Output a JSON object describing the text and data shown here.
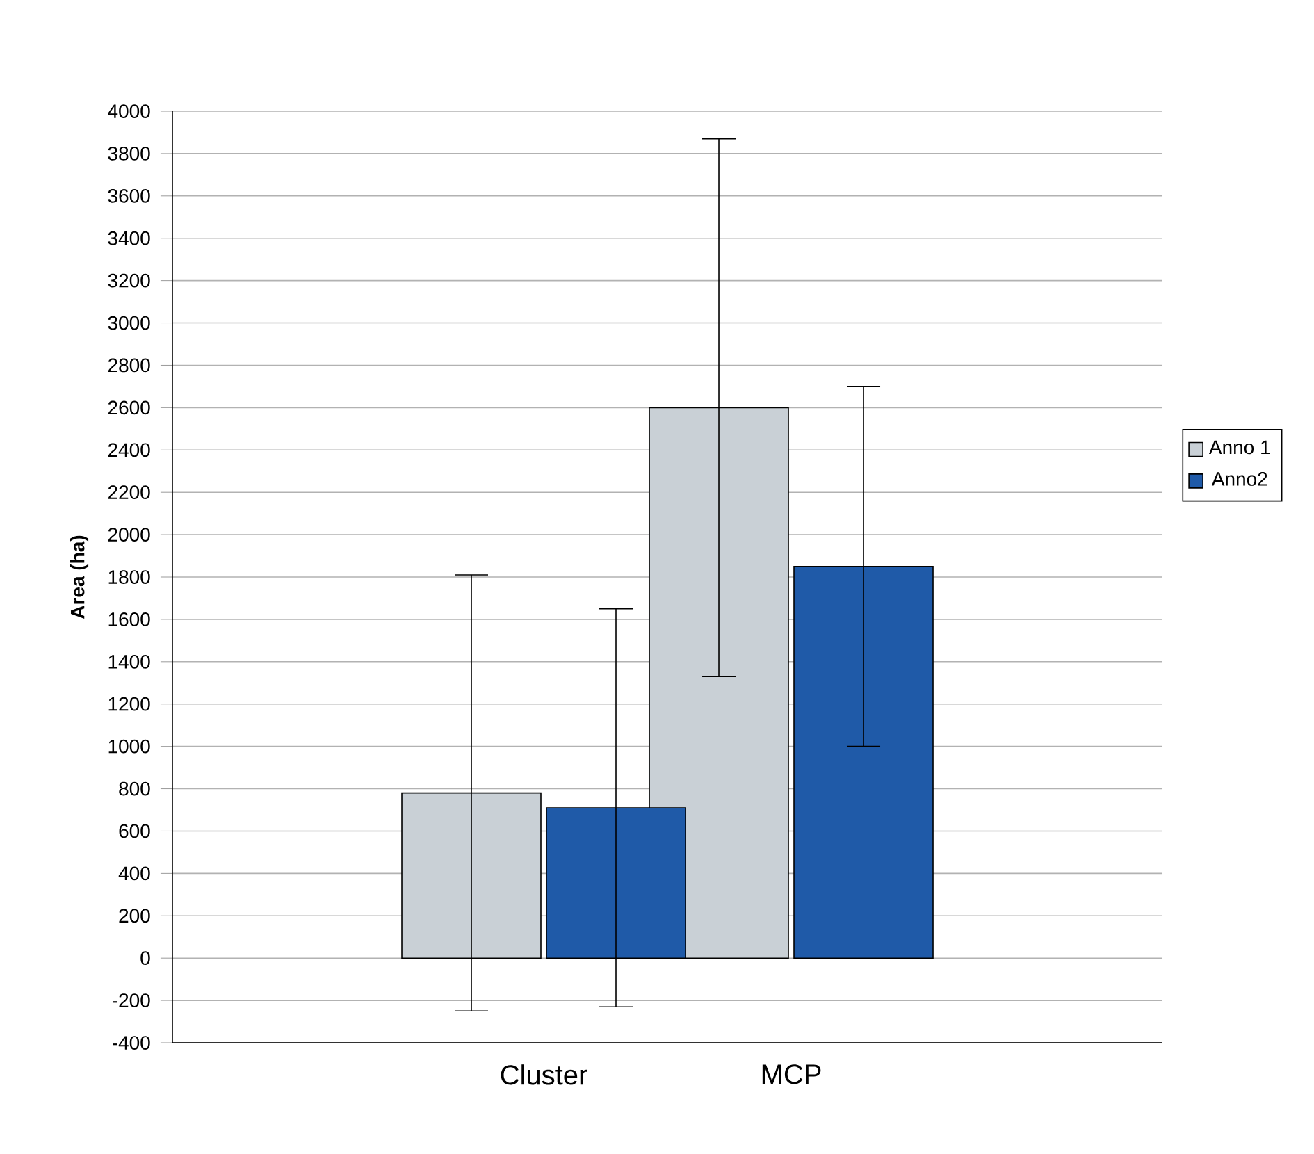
{
  "chart_data": {
    "type": "bar",
    "ylabel": "Area (ha)",
    "categories": [
      "Cluster",
      "MCP"
    ],
    "series": [
      {
        "name": "Anno 1",
        "color": "#c9d0d6",
        "values": [
          780,
          2600
        ],
        "errors": [
          1030,
          1270
        ]
      },
      {
        "name": "Anno2",
        "color": "#1f5aa8",
        "values": [
          710,
          1850
        ],
        "errors": [
          940,
          850
        ]
      }
    ],
    "ylim": [
      -400,
      4000
    ],
    "yticks": [
      -400,
      -200,
      0,
      200,
      400,
      600,
      800,
      1000,
      1200,
      1400,
      1600,
      1800,
      2000,
      2200,
      2400,
      2600,
      2800,
      3000,
      3200,
      3400,
      3600,
      3800,
      4000
    ],
    "grid": "y",
    "legend": "right"
  }
}
